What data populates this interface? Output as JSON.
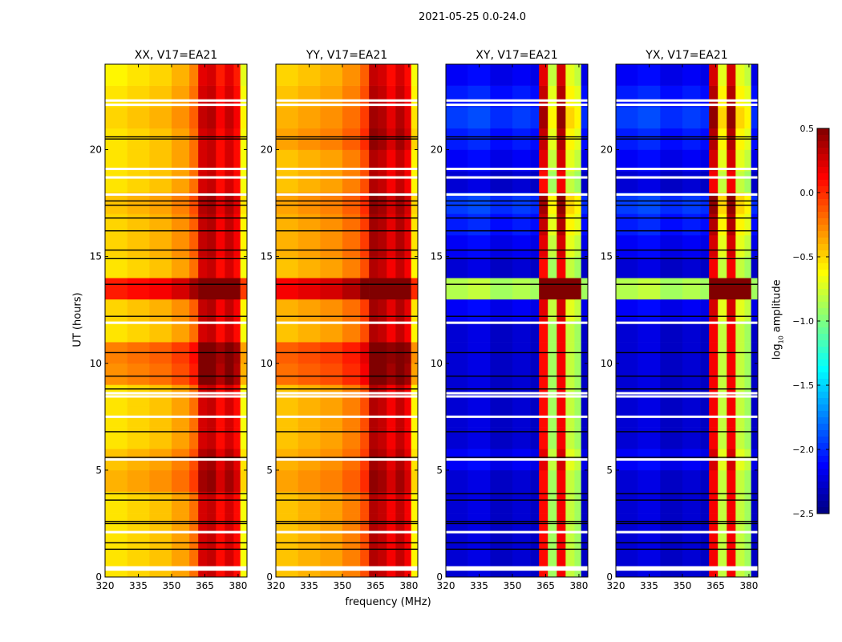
{
  "chart_data": {
    "type": "heatmap",
    "suptitle": "2021-05-25 0.0-24.0",
    "xlabel": "frequency (MHz)",
    "ylabel": "UT (hours)",
    "xlim": [
      320,
      384
    ],
    "ylim": [
      0,
      24
    ],
    "xticks": [
      320,
      335,
      350,
      365,
      380
    ],
    "yticks": [
      0,
      5,
      10,
      15,
      20
    ],
    "freq_bin_edges": [
      320,
      330,
      340,
      350,
      358,
      362,
      366,
      370,
      374,
      378,
      381,
      384
    ],
    "time_bin_hours": 1,
    "panels": [
      {
        "title": "XX, V17=EA21",
        "freq_profile": [
          -0.55,
          -0.5,
          -0.45,
          -0.35,
          -0.2,
          0.25,
          0.3,
          0.1,
          0.25,
          0.1,
          -0.65
        ],
        "time_offset": [
          0,
          0,
          0,
          0,
          0.15,
          0.1,
          0,
          0,
          0,
          0.25,
          0.3,
          0,
          0.05,
          0.6,
          0,
          0.05,
          0.05,
          0.1,
          0,
          0,
          0,
          0.05,
          0,
          -0.05
        ]
      },
      {
        "title": "YY, V17=EA21",
        "freq_profile": [
          -0.45,
          -0.4,
          -0.35,
          -0.25,
          -0.1,
          0.35,
          0.3,
          0.15,
          0.3,
          0.15,
          -0.6
        ],
        "time_offset": [
          0,
          0,
          0,
          0,
          0.1,
          0.05,
          0,
          0,
          0,
          0.25,
          0.3,
          0,
          0.05,
          0.6,
          0,
          0.05,
          0.05,
          0.1,
          0,
          0,
          0.1,
          0.05,
          0,
          -0.05
        ]
      },
      {
        "title": "XY, V17=EA21",
        "freq_profile": [
          -2.25,
          -2.2,
          -2.3,
          -2.25,
          -2.3,
          0.1,
          -0.9,
          0.15,
          -0.8,
          -0.9,
          -2.3
        ],
        "time_offset": [
          0,
          0,
          0,
          0,
          0,
          0.1,
          0,
          0,
          0,
          0,
          0,
          0,
          0.1,
          1.4,
          0,
          0.1,
          0.2,
          0.3,
          0,
          0.1,
          0.2,
          0.3,
          0.2,
          0.1
        ]
      },
      {
        "title": "YX, V17=EA21",
        "freq_profile": [
          -2.25,
          -2.2,
          -2.3,
          -2.25,
          -2.3,
          0.15,
          -0.8,
          0.15,
          -0.8,
          -0.9,
          -2.3
        ],
        "time_offset": [
          0,
          0,
          0,
          0,
          0,
          0.1,
          0,
          0,
          0,
          0,
          0,
          0,
          0.1,
          1.4,
          0,
          0.1,
          0.2,
          0.3,
          0,
          0.1,
          0.2,
          0.3,
          0.2,
          0.1
        ]
      }
    ],
    "flagged_white_hours": [
      0.35,
      0.45,
      2.1,
      5.5,
      7.5,
      8.45,
      8.6,
      11.9,
      17.9,
      18.7,
      19.1,
      22.1,
      22.3
    ],
    "flagged_black_hours": [
      1.3,
      1.6,
      2.5,
      2.6,
      3.6,
      3.9,
      5.6,
      6.8,
      8.8,
      9.4,
      10.5,
      12.2,
      13.7,
      14.9,
      15.3,
      16.2,
      16.8,
      17.4,
      17.6,
      20.5,
      20.6
    ],
    "colorbar": {
      "label_main": "log",
      "label_sub": "10",
      "label_rest": " amplitude",
      "range": [
        -2.5,
        0.5
      ],
      "ticks": [
        "0.5",
        "0.0",
        "−0.5",
        "−1.0",
        "−1.5",
        "−2.0",
        "−2.5"
      ],
      "tick_values": [
        0.5,
        0.0,
        -0.5,
        -1.0,
        -1.5,
        -2.0,
        -2.5
      ],
      "colormap": "jet"
    }
  }
}
